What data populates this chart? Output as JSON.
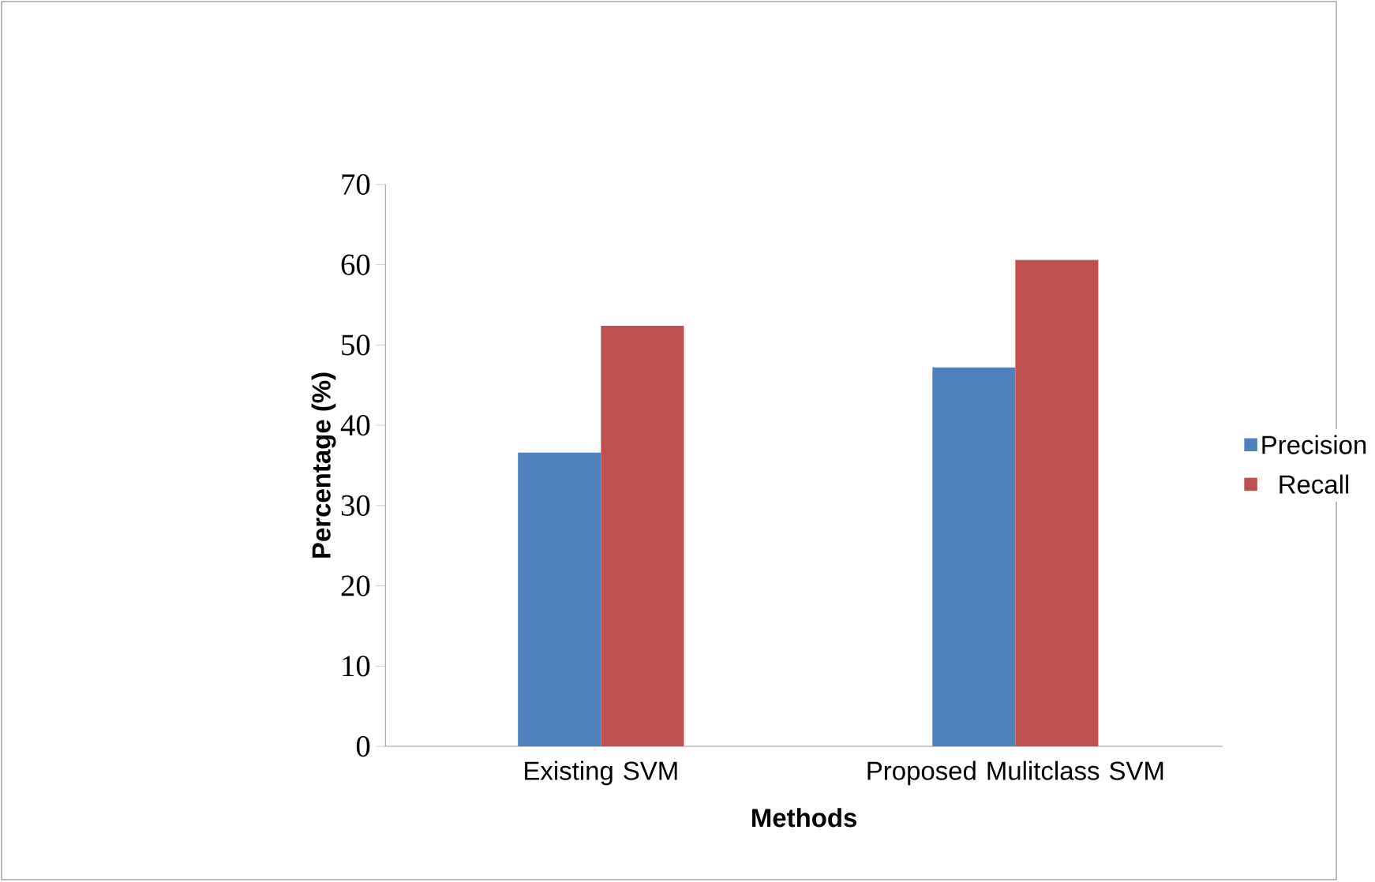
{
  "chart_data": {
    "type": "bar",
    "xlabel": "Methods",
    "ylabel": "Percentage (%)",
    "categories": [
      "Existing SVM",
      "Proposed Mulitclass SVM"
    ],
    "series": [
      {
        "name": "Precision",
        "color": "#4f81bd",
        "values": [
          36.6,
          47.2
        ]
      },
      {
        "name": "Recall",
        "color": "#c0504d",
        "values": [
          52.4,
          60.6
        ]
      }
    ],
    "ylim": [
      0,
      70
    ],
    "yticks": [
      0,
      10,
      20,
      30,
      40,
      50,
      60,
      70
    ],
    "grid": false,
    "legend": "right"
  }
}
